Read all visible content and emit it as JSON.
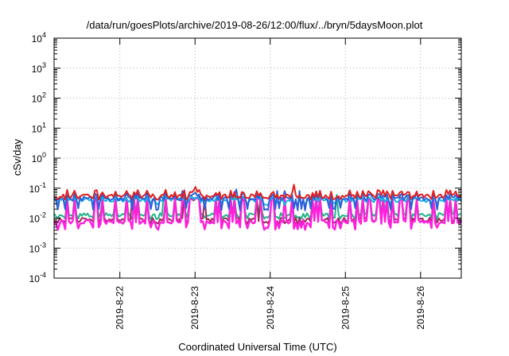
{
  "chart_data": {
    "type": "line",
    "title": "/data/run/goesPlots/archive/2019-08-26/12:00/flux/../bryn/5daysMoon.plot",
    "xlabel": "Coordinated Universal Time (UTC)",
    "ylabel": "cSv/day",
    "yscale": "log",
    "ylim": [
      0.0001,
      10000
    ],
    "xlim": [
      "2019-08-21T03:00",
      "2019-08-26T13:00"
    ],
    "grid": true,
    "legend": "none",
    "y_ticks": [
      {
        "base": "10",
        "exp": "-4"
      },
      {
        "base": "10",
        "exp": "-3"
      },
      {
        "base": "10",
        "exp": "-2"
      },
      {
        "base": "10",
        "exp": "-1"
      },
      {
        "base": "10",
        "exp": "0"
      },
      {
        "base": "10",
        "exp": "1"
      },
      {
        "base": "10",
        "exp": "2"
      },
      {
        "base": "10",
        "exp": "3"
      },
      {
        "base": "10",
        "exp": "4"
      }
    ],
    "x_ticks": [
      "2019-8-22",
      "2019-8-23",
      "2019-8-24",
      "2019-8-25",
      "2019-8-26"
    ],
    "series": [
      {
        "color": "#e02020",
        "base": 0.055,
        "low": 0.045,
        "high": 0.08,
        "spikes": [
          0.09,
          0.13,
          0.11
        ]
      },
      {
        "color": "#2d5fd9",
        "base": 0.045,
        "low": 0.02,
        "high": 0.065,
        "spikes": [
          0.08,
          0.09
        ]
      },
      {
        "color": "#1fb58a",
        "base": 0.013,
        "low": 0.01,
        "high": 0.05,
        "spikes": [
          0.06
        ]
      },
      {
        "color": "#9b2d5a",
        "base": 0.009,
        "low": 0.007,
        "high": 0.045,
        "spikes": [
          0.05
        ]
      },
      {
        "color": "#ff1fdc",
        "base": 0.0075,
        "low": 0.0045,
        "high": 0.045,
        "spikes": [
          0.05
        ]
      },
      {
        "color": "#11b4e6",
        "base": 0.04,
        "low": 0.03,
        "high": 0.05,
        "spikes": []
      }
    ]
  }
}
